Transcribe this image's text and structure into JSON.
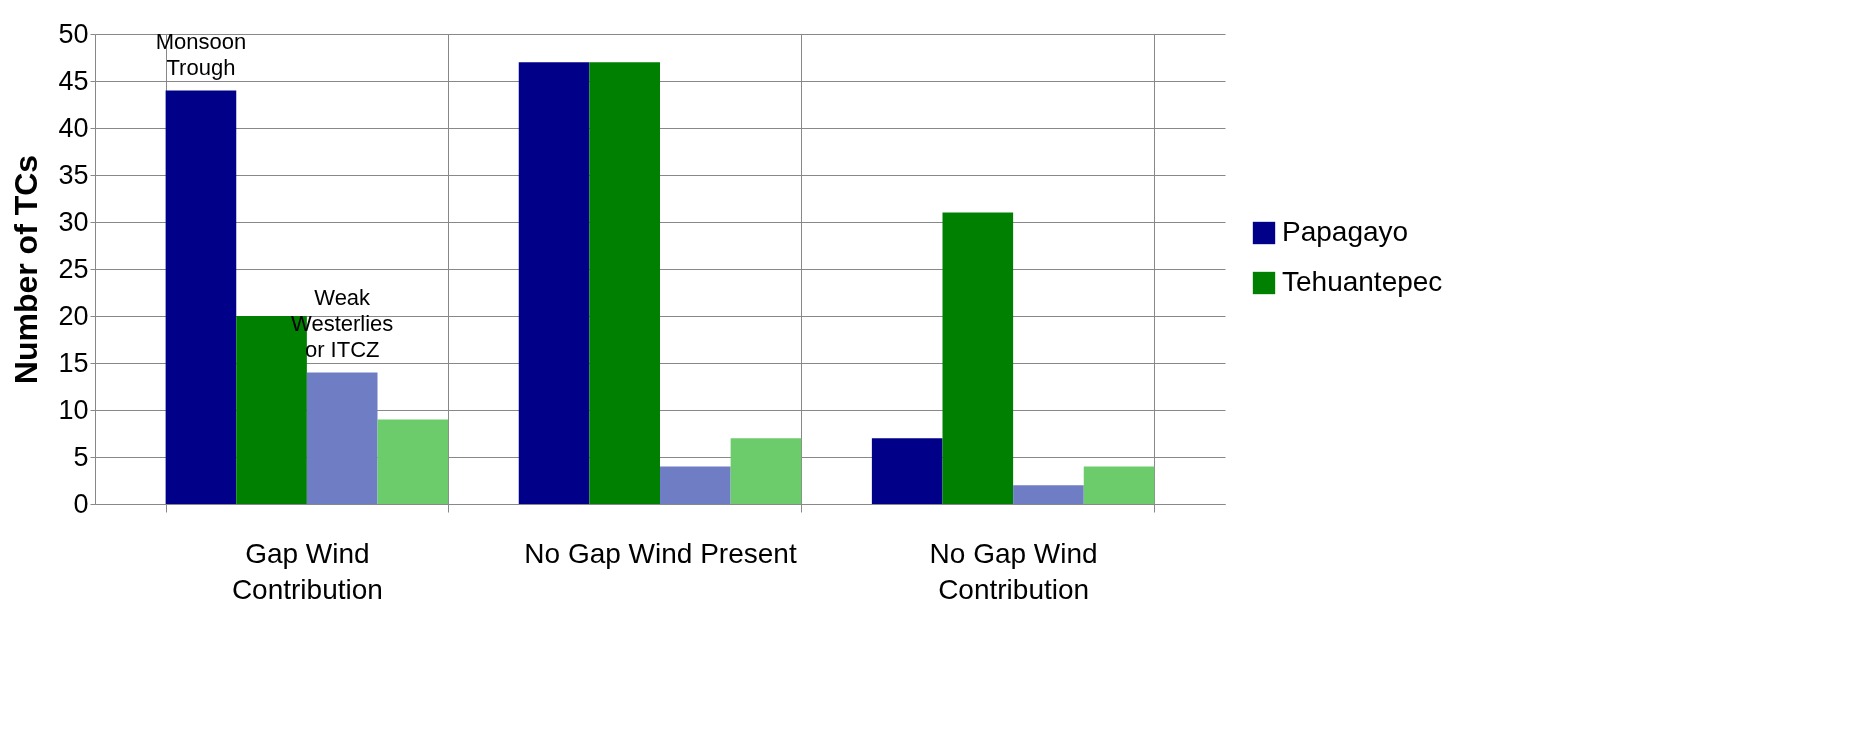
{
  "chart_data": {
    "type": "bar",
    "ylabel": "Number of TCs",
    "categories": [
      "Gap Wind Contribution",
      "No Gap Wind Present",
      "No Gap Wind Contribution"
    ],
    "series": [
      {
        "name": "Papagayo",
        "color": "#000088",
        "values": [
          44,
          47,
          7
        ]
      },
      {
        "name": "Tehuantepec",
        "color": "#008000",
        "values": [
          20,
          47,
          31
        ]
      },
      {
        "color": "#6f7dc4",
        "values": [
          14,
          4,
          2
        ]
      },
      {
        "color": "#6ccc6c",
        "values": [
          9,
          7,
          4
        ]
      }
    ],
    "ylim": [
      0,
      50
    ],
    "yticks": [
      0,
      5,
      10,
      15,
      20,
      25,
      30,
      35,
      40,
      45,
      50
    ],
    "grid": true,
    "legend": "right",
    "annotations": [
      "Monsoon Trough",
      "Weak Westerlies or ITCZ"
    ]
  }
}
